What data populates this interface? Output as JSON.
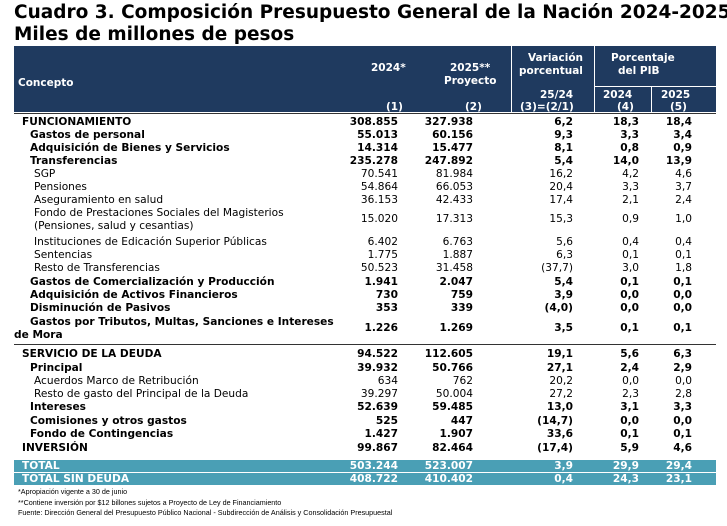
{
  "title": {
    "line1": "Cuadro 3. Composición Presupuesto General de la Nación 2024-2025",
    "line2": "Miles de millones de pesos"
  },
  "header": {
    "concepto": "Concepto",
    "y2024": "2024*",
    "y2025": "2025**",
    "y2025b": "Proyecto",
    "var": "Variación",
    "var2": "porcentual",
    "pib": "Porcentaje",
    "pib2": "del PIB",
    "var_sub": "25/24",
    "pib_2024": "2024",
    "pib_2025": "2025",
    "idx1": "(1)",
    "idx2": "(2)",
    "idx3": "(3)=(2/1)",
    "idx4": "(4)",
    "idx5": "(5)"
  },
  "rows": [
    {
      "c": "FUNCIONAMIENTO",
      "v1": "308.855",
      "v2": "327.938",
      "v3": "6,2",
      "v4": "18,3",
      "v5": "18,4",
      "bold": true,
      "indent": 0
    },
    {
      "c": "Gastos de personal",
      "v1": "55.013",
      "v2": "60.156",
      "v3": "9,3",
      "v4": "3,3",
      "v5": "3,4",
      "bold": true,
      "indent": 1
    },
    {
      "c": "Adquisición de Bienes y Servicios",
      "v1": "14.314",
      "v2": "15.477",
      "v3": "8,1",
      "v4": "0,8",
      "v5": "0,9",
      "bold": true,
      "indent": 1
    },
    {
      "c": "Transferencias",
      "v1": "235.278",
      "v2": "247.892",
      "v3": "5,4",
      "v4": "14,0",
      "v5": "13,9",
      "bold": true,
      "indent": 1
    },
    {
      "c": "SGP",
      "v1": "70.541",
      "v2": "81.984",
      "v3": "16,2",
      "v4": "4,2",
      "v5": "4,6",
      "bold": false,
      "indent": 2
    },
    {
      "c": "Pensiones",
      "v1": "54.864",
      "v2": "66.053",
      "v3": "20,4",
      "v4": "3,3",
      "v5": "3,7",
      "bold": false,
      "indent": 2
    },
    {
      "c": "Aseguramiento en salud",
      "v1": "36.153",
      "v2": "42.433",
      "v3": "17,4",
      "v4": "2,1",
      "v5": "2,4",
      "bold": false,
      "indent": 2
    },
    {
      "c": "Fondo de Prestaciones Sociales del Magisterios",
      "c2": "(Pensiones, salud y cesantias)",
      "v1": "15.020",
      "v2": "17.313",
      "v3": "15,3",
      "v4": "0,9",
      "v5": "1,0",
      "bold": false,
      "indent": 2
    },
    {
      "c": "Instituciones de Edicación Superior Públicas",
      "v1": "6.402",
      "v2": "6.763",
      "v3": "5,6",
      "v4": "0,4",
      "v5": "0,4",
      "bold": false,
      "indent": 2
    },
    {
      "c": "Sentencias",
      "v1": "1.775",
      "v2": "1.887",
      "v3": "6,3",
      "v4": "0,1",
      "v5": "0,1",
      "bold": false,
      "indent": 2
    },
    {
      "c": "Resto de Transferencias",
      "v1": "50.523",
      "v2": "31.458",
      "v3": "(37,7)",
      "v4": "3,0",
      "v5": "1,8",
      "bold": false,
      "indent": 2
    },
    {
      "c": "Gastos de Comercialización y Producción",
      "v1": "1.941",
      "v2": "2.047",
      "v3": "5,4",
      "v4": "0,1",
      "v5": "0,1",
      "bold": true,
      "indent": 1
    },
    {
      "c": "Adquisición de Activos Financieros",
      "v1": "730",
      "v2": "759",
      "v3": "3,9",
      "v4": "0,0",
      "v5": "0,0",
      "bold": true,
      "indent": 1
    },
    {
      "c": "Disminución de Pasivos",
      "v1": "353",
      "v2": "339",
      "v3": "(4,0)",
      "v4": "0,0",
      "v5": "0,0",
      "bold": true,
      "indent": 1
    },
    {
      "c": "Gastos por Tributos, Multas, Sanciones e Intereses",
      "c2": "de Mora",
      "v1": "1.226",
      "v2": "1.269",
      "v3": "3,5",
      "v4": "0,1",
      "v5": "0,1",
      "bold": true,
      "indent": 1
    },
    {
      "c": "SERVICIO DE LA DEUDA",
      "v1": "94.522",
      "v2": "112.605",
      "v3": "19,1",
      "v4": "5,6",
      "v5": "6,3",
      "bold": true,
      "indent": 0
    },
    {
      "c": "Principal",
      "v1": "39.932",
      "v2": "50.766",
      "v3": "27,1",
      "v4": "2,4",
      "v5": "2,9",
      "bold": true,
      "indent": 1
    },
    {
      "c": "Acuerdos Marco de Retribución",
      "v1": "634",
      "v2": "762",
      "v3": "20,2",
      "v4": "0,0",
      "v5": "0,0",
      "bold": false,
      "indent": 2
    },
    {
      "c": "Resto de gasto del Principal de la Deuda",
      "v1": "39.297",
      "v2": "50.004",
      "v3": "27,2",
      "v4": "2,3",
      "v5": "2,8",
      "bold": false,
      "indent": 2
    },
    {
      "c": "Intereses",
      "v1": "52.639",
      "v2": "59.485",
      "v3": "13,0",
      "v4": "3,1",
      "v5": "3,3",
      "bold": true,
      "indent": 1
    },
    {
      "c": "Comisiones y otros gastos",
      "v1": "525",
      "v2": "447",
      "v3": "(14,7)",
      "v4": "0,0",
      "v5": "0,0",
      "bold": true,
      "indent": 1
    },
    {
      "c": "Fondo de Contingencias",
      "v1": "1.427",
      "v2": "1.907",
      "v3": "33,6",
      "v4": "0,1",
      "v5": "0,1",
      "bold": true,
      "indent": 1
    },
    {
      "c": "INVERSIÓN",
      "v1": "99.867",
      "v2": "82.464",
      "v3": "(17,4)",
      "v4": "5,9",
      "v5": "4,6",
      "bold": true,
      "indent": 0
    }
  ],
  "totals": [
    {
      "c": "TOTAL",
      "v1": "503.244",
      "v2": "523.007",
      "v3": "3,9",
      "v4": "29,9",
      "v5": "29,4"
    },
    {
      "c": "TOTAL SIN DEUDA",
      "v1": "408.722",
      "v2": "410.402",
      "v3": "0,4",
      "v4": "24,3",
      "v5": "23,1"
    }
  ],
  "notes": [
    "*Apropiación vigente a 30 de junio",
    "**Contiene inversión por $12 billones sujetos a Proyecto de Ley de Financiamiento",
    "Fuente: Dirección General del Presupuesto Público Nacional - Subdirección de Análisis y Consolidación Presupuestal"
  ],
  "colors": {
    "header_bg": "#1f3a5f",
    "total_bg": "#4a9fb5"
  }
}
